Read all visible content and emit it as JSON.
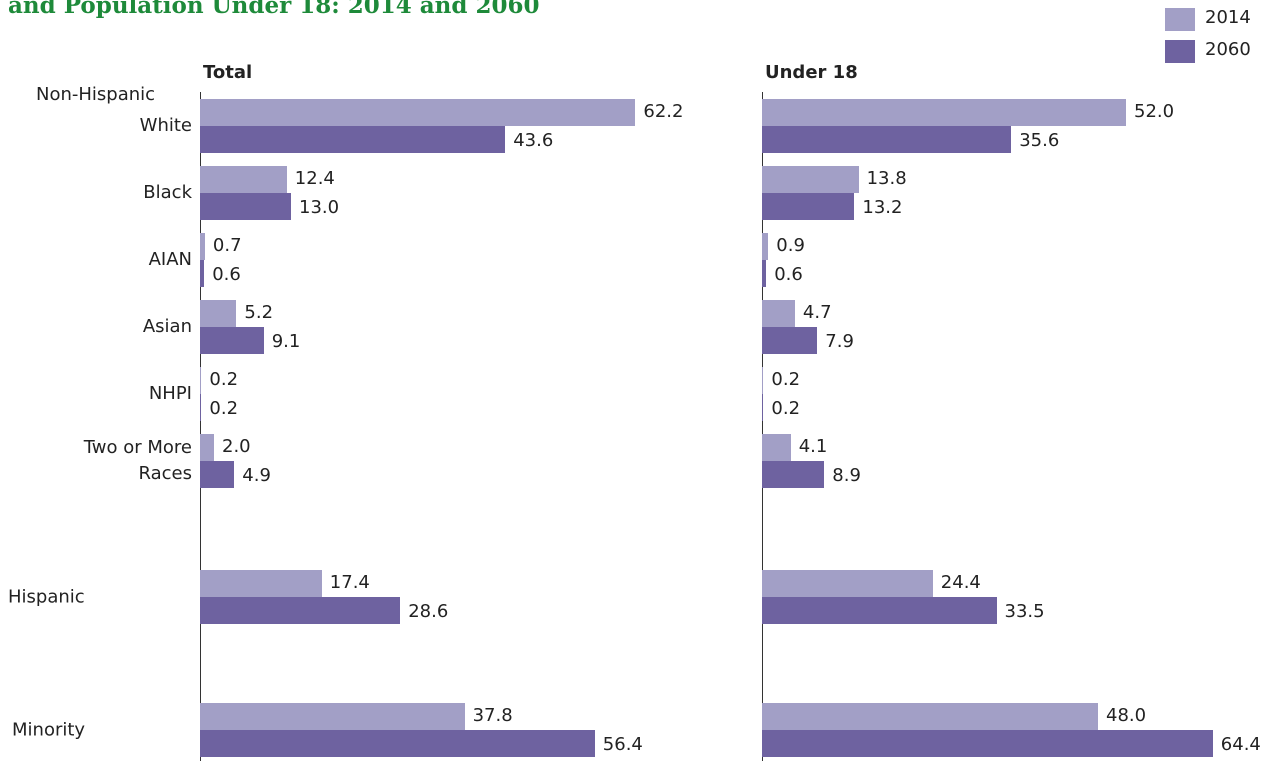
{
  "chart_data": {
    "type": "bar",
    "orientation": "horizontal",
    "title": "and Population Under 18: 2014 and 2060",
    "group_label": "Non-Hispanic",
    "categories": [
      "White",
      "Black",
      "AIAN",
      "Asian",
      "NHPI",
      "Two or More Races",
      "Hispanic",
      "Minority"
    ],
    "series": [
      {
        "name": "2014",
        "color": "#a29fc6"
      },
      {
        "name": "2060",
        "color": "#6e62a0"
      }
    ],
    "xlim": [
      0,
      70
    ],
    "panels": [
      {
        "title": "Total",
        "values": [
          [
            62.2,
            12.4,
            0.7,
            5.2,
            0.2,
            2.0,
            17.4,
            37.8
          ],
          [
            43.6,
            13.0,
            0.6,
            9.1,
            0.2,
            4.9,
            28.6,
            56.4
          ]
        ],
        "value_labels": [
          [
            "62.2",
            "12.4",
            "0.7",
            "5.2",
            "0.2",
            "2.0",
            "17.4",
            "37.8"
          ],
          [
            "43.6",
            "13.0",
            "0.6",
            "9.1",
            "0.2",
            "4.9",
            "28.6",
            "56.4"
          ]
        ]
      },
      {
        "title": "Under 18",
        "values": [
          [
            52.0,
            13.8,
            0.9,
            4.7,
            0.2,
            4.1,
            24.4,
            48.0
          ],
          [
            35.6,
            13.2,
            0.6,
            7.9,
            0.2,
            8.9,
            33.5,
            64.4
          ]
        ],
        "value_labels": [
          [
            "52.0",
            "13.8",
            "0.9",
            "4.7",
            "0.2",
            "4.1",
            "24.4",
            "48.0"
          ],
          [
            "35.6",
            "13.2",
            "0.6",
            "7.9",
            "0.2",
            "8.9",
            "33.5",
            "64.4"
          ]
        ]
      }
    ]
  }
}
